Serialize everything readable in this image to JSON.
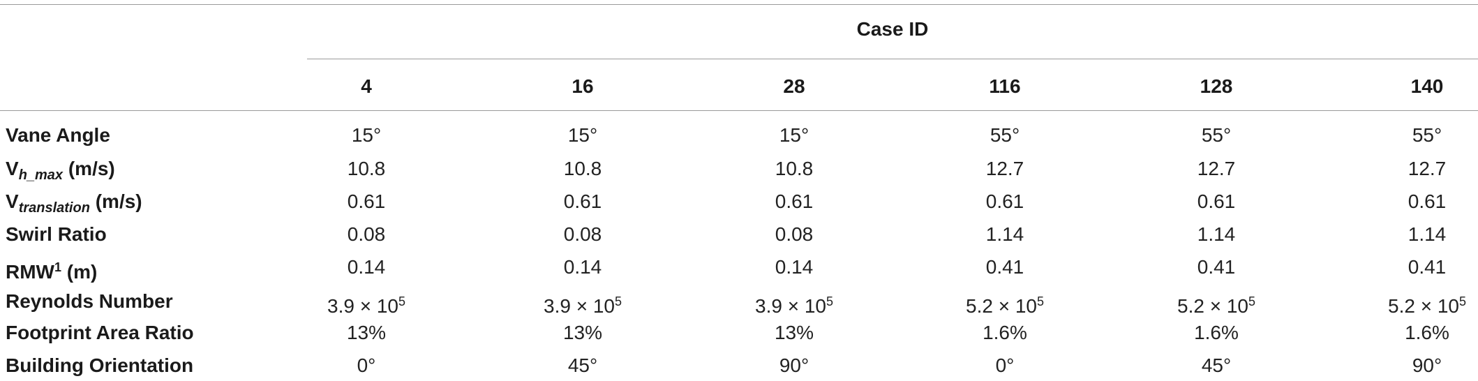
{
  "table": {
    "group_header": "Case ID",
    "columns": [
      "4",
      "16",
      "28",
      "116",
      "128",
      "140"
    ],
    "rows": [
      {
        "label": {
          "main": "Vane Angle",
          "sub": "",
          "sup": "",
          "tail": ""
        },
        "cells": [
          {
            "main": "15°",
            "sup": ""
          },
          {
            "main": "15°",
            "sup": ""
          },
          {
            "main": "15°",
            "sup": ""
          },
          {
            "main": "55°",
            "sup": ""
          },
          {
            "main": "55°",
            "sup": ""
          },
          {
            "main": "55°",
            "sup": ""
          }
        ]
      },
      {
        "label": {
          "main": "V",
          "sub": "h_max",
          "sup": "",
          "tail": " (m/s)"
        },
        "cells": [
          {
            "main": "10.8",
            "sup": ""
          },
          {
            "main": "10.8",
            "sup": ""
          },
          {
            "main": "10.8",
            "sup": ""
          },
          {
            "main": "12.7",
            "sup": ""
          },
          {
            "main": "12.7",
            "sup": ""
          },
          {
            "main": "12.7",
            "sup": ""
          }
        ]
      },
      {
        "label": {
          "main": "V",
          "sub": "translation",
          "sup": "",
          "tail": " (m/s)"
        },
        "cells": [
          {
            "main": "0.61",
            "sup": ""
          },
          {
            "main": "0.61",
            "sup": ""
          },
          {
            "main": "0.61",
            "sup": ""
          },
          {
            "main": "0.61",
            "sup": ""
          },
          {
            "main": "0.61",
            "sup": ""
          },
          {
            "main": "0.61",
            "sup": ""
          }
        ]
      },
      {
        "label": {
          "main": "Swirl Ratio",
          "sub": "",
          "sup": "",
          "tail": ""
        },
        "cells": [
          {
            "main": "0.08",
            "sup": ""
          },
          {
            "main": "0.08",
            "sup": ""
          },
          {
            "main": "0.08",
            "sup": ""
          },
          {
            "main": "1.14",
            "sup": ""
          },
          {
            "main": "1.14",
            "sup": ""
          },
          {
            "main": "1.14",
            "sup": ""
          }
        ]
      },
      {
        "label": {
          "main": "RMW",
          "sub": "",
          "sup": "1",
          "tail": " (m)"
        },
        "cells": [
          {
            "main": "0.14",
            "sup": ""
          },
          {
            "main": "0.14",
            "sup": ""
          },
          {
            "main": "0.14",
            "sup": ""
          },
          {
            "main": "0.41",
            "sup": ""
          },
          {
            "main": "0.41",
            "sup": ""
          },
          {
            "main": "0.41",
            "sup": ""
          }
        ]
      },
      {
        "label": {
          "main": "Reynolds Number",
          "sub": "",
          "sup": "",
          "tail": ""
        },
        "cells": [
          {
            "main": "3.9 × 10",
            "sup": "5"
          },
          {
            "main": "3.9 × 10",
            "sup": "5"
          },
          {
            "main": "3.9 × 10",
            "sup": "5"
          },
          {
            "main": "5.2 × 10",
            "sup": "5"
          },
          {
            "main": "5.2 × 10",
            "sup": "5"
          },
          {
            "main": "5.2 × 10",
            "sup": "5"
          }
        ]
      },
      {
        "label": {
          "main": "Footprint Area Ratio",
          "sub": "",
          "sup": "",
          "tail": ""
        },
        "cells": [
          {
            "main": "13%",
            "sup": ""
          },
          {
            "main": "13%",
            "sup": ""
          },
          {
            "main": "13%",
            "sup": ""
          },
          {
            "main": "1.6%",
            "sup": ""
          },
          {
            "main": "1.6%",
            "sup": ""
          },
          {
            "main": "1.6%",
            "sup": ""
          }
        ]
      },
      {
        "label": {
          "main": "Building Orientation",
          "sub": "",
          "sup": "",
          "tail": ""
        },
        "cells": [
          {
            "main": "0°",
            "sup": ""
          },
          {
            "main": "45°",
            "sup": ""
          },
          {
            "main": "90°",
            "sup": ""
          },
          {
            "main": "0°",
            "sup": ""
          },
          {
            "main": "45°",
            "sup": ""
          },
          {
            "main": "90°",
            "sup": ""
          }
        ]
      }
    ]
  }
}
